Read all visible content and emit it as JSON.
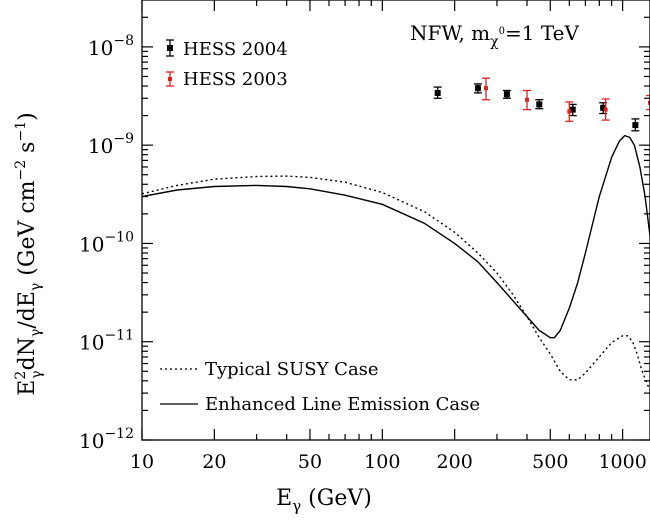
{
  "chart_data": {
    "type": "line",
    "xscale": "log",
    "yscale": "log",
    "xlim": [
      10,
      1300
    ],
    "ylim": [
      1e-12,
      3e-08
    ],
    "x_ticks": [
      {
        "value": 10,
        "label": "10"
      },
      {
        "value": 20,
        "label": "20"
      },
      {
        "value": 50,
        "label": "50"
      },
      {
        "value": 100,
        "label": "100"
      },
      {
        "value": 200,
        "label": "200"
      },
      {
        "value": 500,
        "label": "500"
      },
      {
        "value": 1000,
        "label": "1000"
      }
    ],
    "y_ticks": [
      {
        "value": 1e-12,
        "mantissa": "10",
        "exponent": "−12"
      },
      {
        "value": 1e-11,
        "mantissa": "10",
        "exponent": "−11"
      },
      {
        "value": 1e-10,
        "mantissa": "10",
        "exponent": "−10"
      },
      {
        "value": 1e-09,
        "mantissa": "10",
        "exponent": "−9"
      },
      {
        "value": 1e-08,
        "mantissa": "10",
        "exponent": "−8"
      }
    ],
    "xlabel": {
      "base": "E",
      "sub": "γ",
      "rest": " (GeV)"
    },
    "ylabel": {
      "p1": "E",
      "p1_sup": "2",
      "p1_sub": "γ",
      "p2": "dN",
      "p2_sub": "γ",
      "p3": "/dE",
      "p3_sub": "γ",
      "p4": " (GeV cm",
      "p4_sup": "−2",
      "p5": " s",
      "p5_sup": "−1",
      "p6": ")"
    },
    "annotation": {
      "pre": "NFW, m",
      "sub": "χ",
      "subsup": "0",
      "post": "=1 TeV"
    },
    "series": [
      {
        "name": "Typical SUSY Case",
        "style": "dotted",
        "color": "#000000",
        "points": [
          [
            10,
            3.2e-10
          ],
          [
            14,
            3.9e-10
          ],
          [
            20,
            4.5e-10
          ],
          [
            30,
            4.8e-10
          ],
          [
            40,
            4.85e-10
          ],
          [
            50,
            4.7e-10
          ],
          [
            70,
            4.2e-10
          ],
          [
            100,
            3.3e-10
          ],
          [
            150,
            2.1e-10
          ],
          [
            200,
            1.3e-10
          ],
          [
            250,
            8e-11
          ],
          [
            300,
            5e-11
          ],
          [
            350,
            3e-11
          ],
          [
            400,
            1.8e-11
          ],
          [
            450,
            1.1e-11
          ],
          [
            500,
            7.5e-12
          ],
          [
            550,
            5e-12
          ],
          [
            600,
            4.1e-12
          ],
          [
            650,
            4.1e-12
          ],
          [
            700,
            4.8e-12
          ],
          [
            800,
            7e-12
          ],
          [
            900,
            9.8e-12
          ],
          [
            1000,
            1.15e-11
          ],
          [
            1050,
            1.15e-11
          ],
          [
            1100,
            1e-11
          ],
          [
            1150,
            7.5e-12
          ],
          [
            1200,
            5.2e-12
          ],
          [
            1250,
            4e-12
          ],
          [
            1300,
            3.2e-12
          ]
        ]
      },
      {
        "name": "Enhanced Line Emission Case",
        "style": "solid",
        "color": "#000000",
        "points": [
          [
            10,
            3e-10
          ],
          [
            14,
            3.5e-10
          ],
          [
            20,
            3.8e-10
          ],
          [
            30,
            3.9e-10
          ],
          [
            40,
            3.8e-10
          ],
          [
            50,
            3.6e-10
          ],
          [
            70,
            3.1e-10
          ],
          [
            100,
            2.5e-10
          ],
          [
            150,
            1.6e-10
          ],
          [
            200,
            1e-10
          ],
          [
            250,
            6.5e-11
          ],
          [
            300,
            4e-11
          ],
          [
            350,
            2.6e-11
          ],
          [
            400,
            1.8e-11
          ],
          [
            450,
            1.3e-11
          ],
          [
            500,
            1.1e-11
          ],
          [
            520,
            1.1e-11
          ],
          [
            550,
            1.3e-11
          ],
          [
            600,
            2.2e-11
          ],
          [
            650,
            4e-11
          ],
          [
            700,
            8e-11
          ],
          [
            800,
            3e-10
          ],
          [
            900,
            7.5e-10
          ],
          [
            970,
            1.1e-09
          ],
          [
            1020,
            1.25e-09
          ],
          [
            1070,
            1.2e-09
          ],
          [
            1120,
            1e-09
          ],
          [
            1180,
            6e-10
          ],
          [
            1240,
            3e-10
          ],
          [
            1300,
            1.2e-10
          ]
        ]
      },
      {
        "name": "HESS 2004",
        "type": "errorbar",
        "color": "#000000",
        "points": [
          {
            "x": 170,
            "y": 3.4e-09,
            "ylo": 3e-09,
            "yhi": 3.9e-09
          },
          {
            "x": 250,
            "y": 3.8e-09,
            "ylo": 3.4e-09,
            "yhi": 4.2e-09
          },
          {
            "x": 330,
            "y": 3.3e-09,
            "ylo": 3e-09,
            "yhi": 3.6e-09
          },
          {
            "x": 450,
            "y": 2.6e-09,
            "ylo": 2.35e-09,
            "yhi": 2.9e-09
          },
          {
            "x": 620,
            "y": 2.3e-09,
            "ylo": 2e-09,
            "yhi": 2.6e-09
          },
          {
            "x": 830,
            "y": 2.4e-09,
            "ylo": 2.1e-09,
            "yhi": 2.7e-09
          },
          {
            "x": 1130,
            "y": 1.6e-09,
            "ylo": 1.4e-09,
            "yhi": 1.85e-09
          }
        ]
      },
      {
        "name": "HESS 2003",
        "type": "errorbar",
        "color": "#e02020",
        "points": [
          {
            "x": 270,
            "y": 3.8e-09,
            "ylo": 2.9e-09,
            "yhi": 4.8e-09
          },
          {
            "x": 400,
            "y": 2.9e-09,
            "ylo": 2.3e-09,
            "yhi": 3.6e-09
          },
          {
            "x": 600,
            "y": 2.2e-09,
            "ylo": 1.75e-09,
            "yhi": 2.75e-09
          },
          {
            "x": 850,
            "y": 2.3e-09,
            "ylo": 1.8e-09,
            "yhi": 2.95e-09
          },
          {
            "x": 1300,
            "y": 2.7e-09,
            "ylo": 2.3e-09,
            "yhi": 3.2e-09
          }
        ]
      }
    ],
    "legend_top": {
      "placement": "top-left",
      "entries": [
        "HESS 2004",
        "HESS 2003"
      ]
    },
    "legend_bottom": {
      "placement": "bottom-left",
      "entries": [
        "Typical SUSY Case",
        "Enhanced Line Emission Case"
      ]
    }
  }
}
